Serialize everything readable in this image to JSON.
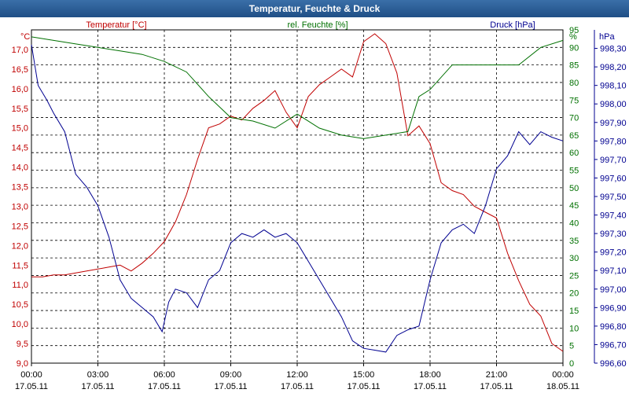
{
  "window": {
    "title": "Temperatur, Feuchte & Druck"
  },
  "chart_data": {
    "type": "line",
    "title": "Temperatur, Feuchte & Druck",
    "x_ticks": [
      {
        "time": "00:00",
        "date": "17.05.11"
      },
      {
        "time": "03:00",
        "date": "17.05.11"
      },
      {
        "time": "06:00",
        "date": "17.05.11"
      },
      {
        "time": "09:00",
        "date": "17.05.11"
      },
      {
        "time": "12:00",
        "date": "17.05.11"
      },
      {
        "time": "15:00",
        "date": "17.05.11"
      },
      {
        "time": "18:00",
        "date": "17.05.11"
      },
      {
        "time": "21:00",
        "date": "17.05.11"
      },
      {
        "time": "00:00",
        "date": "18.05.11"
      }
    ],
    "xlim": [
      "17.05.11 00:00",
      "18.05.11 00:00"
    ],
    "axes": {
      "temperature": {
        "label": "Temperatur [°C]",
        "unit": "°C",
        "range": [
          9.0,
          17.5
        ],
        "color": "#c00000",
        "ticks": [
          "9,0",
          "9,5",
          "10,0",
          "10,5",
          "11,0",
          "11,5",
          "12,0",
          "12,5",
          "13,0",
          "13,5",
          "14,0",
          "14,5",
          "15,0",
          "15,5",
          "16,0",
          "16,5",
          "17,0"
        ]
      },
      "humidity": {
        "label": "rel. Feuchte [%]",
        "unit": "%",
        "range": [
          0,
          95
        ],
        "color": "#007000",
        "ticks": [
          "0",
          "5",
          "10",
          "15",
          "20",
          "25",
          "30",
          "35",
          "40",
          "45",
          "50",
          "55",
          "60",
          "65",
          "70",
          "75",
          "80",
          "85",
          "90",
          "95"
        ]
      },
      "pressure": {
        "label": "Druck [hPa]",
        "unit": "hPa",
        "range": [
          996.6,
          998.4
        ],
        "color": "#000090",
        "ticks": [
          "996,60",
          "996,70",
          "996,80",
          "996,90",
          "997,00",
          "997,10",
          "997,20",
          "997,30",
          "997,40",
          "997,50",
          "997,60",
          "997,70",
          "997,80",
          "997,90",
          "998,00",
          "998,10",
          "998,20",
          "998,30"
        ]
      }
    },
    "grid": true,
    "series": [
      {
        "name": "Temperatur [°C]",
        "axis": "temperature",
        "color": "#c00000",
        "x": [
          0,
          0.5,
          1,
          1.5,
          2,
          2.5,
          3,
          3.5,
          4,
          4.5,
          5,
          5.5,
          6,
          6.5,
          7,
          7.5,
          8,
          8.5,
          9,
          9.5,
          10,
          10.5,
          11,
          11.5,
          12,
          12.5,
          13,
          13.5,
          14,
          14.5,
          15,
          15.5,
          16,
          16.5,
          17,
          17.5,
          18,
          18.5,
          19,
          19.5,
          20,
          20.5,
          21,
          21.5,
          22,
          22.5,
          23,
          23.5,
          24
        ],
        "values": [
          11.2,
          11.2,
          11.25,
          11.25,
          11.3,
          11.35,
          11.4,
          11.45,
          11.5,
          11.35,
          11.55,
          11.8,
          12.1,
          12.6,
          13.3,
          14.2,
          15.0,
          15.1,
          15.3,
          15.2,
          15.5,
          15.7,
          15.95,
          15.4,
          15.0,
          15.8,
          16.1,
          16.3,
          16.5,
          16.3,
          17.2,
          17.4,
          17.15,
          16.4,
          14.8,
          15.05,
          14.6,
          13.6,
          13.4,
          13.3,
          13.0,
          12.85,
          12.7,
          11.8,
          11.1,
          10.5,
          10.2,
          9.5,
          9.3
        ]
      },
      {
        "name": "rel. Feuchte [%]",
        "axis": "humidity",
        "color": "#007000",
        "x": [
          0,
          1,
          2,
          3,
          4,
          5,
          6,
          7,
          8,
          9,
          10,
          11,
          12,
          13,
          14,
          15,
          16,
          17,
          17.5,
          18,
          19,
          20,
          21,
          22,
          23,
          24
        ],
        "values": [
          93,
          92,
          91,
          90,
          89,
          88,
          86,
          83,
          76,
          70,
          69,
          67,
          71,
          67,
          65,
          64,
          65,
          66,
          76,
          78,
          85,
          85,
          85,
          85,
          90,
          92
        ]
      },
      {
        "name": "Druck [hPa]",
        "axis": "pressure",
        "color": "#000090",
        "x": [
          0,
          0.3,
          0.7,
          1,
          1.5,
          2,
          2.5,
          3,
          3.5,
          4,
          4.5,
          5,
          5.5,
          5.9,
          6.2,
          6.5,
          7,
          7.5,
          8,
          8.5,
          9,
          9.5,
          10,
          10.5,
          11,
          11.5,
          12,
          12.5,
          13,
          13.5,
          14,
          14.5,
          15,
          15.5,
          16,
          16.5,
          17,
          17.5,
          18,
          18.5,
          19,
          19.5,
          20,
          20.5,
          21,
          21.5,
          22,
          22.5,
          23,
          23.5,
          24
        ],
        "values": [
          998.32,
          998.1,
          998.02,
          997.95,
          997.85,
          997.62,
          997.55,
          997.45,
          997.28,
          997.05,
          996.95,
          996.9,
          996.85,
          996.77,
          996.93,
          997.0,
          996.98,
          996.9,
          997.05,
          997.1,
          997.25,
          997.3,
          997.28,
          997.32,
          997.28,
          997.3,
          997.25,
          997.15,
          997.05,
          996.95,
          996.85,
          996.72,
          996.68,
          996.67,
          996.66,
          996.75,
          996.78,
          996.8,
          997.05,
          997.25,
          997.32,
          997.35,
          997.3,
          997.45,
          997.65,
          997.72,
          997.85,
          997.78,
          997.85,
          997.82,
          997.8
        ]
      }
    ]
  }
}
